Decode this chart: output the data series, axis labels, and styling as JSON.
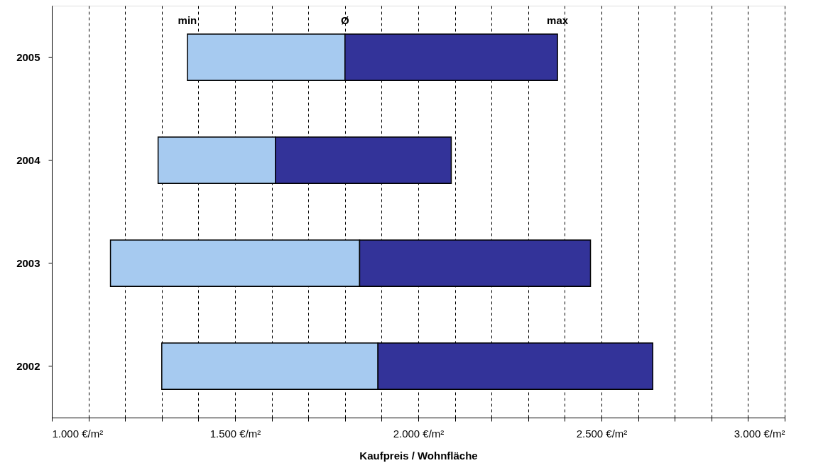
{
  "chart_data": {
    "type": "bar",
    "orientation": "horizontal",
    "categories": [
      "2005",
      "2004",
      "2003",
      "2002"
    ],
    "series": [
      {
        "color": "#a6caf0",
        "base": [
          1370,
          1290,
          1160,
          1300
        ],
        "values": [
          430,
          320,
          680,
          590
        ]
      },
      {
        "color": "#333399",
        "base": [
          1800,
          1610,
          1840,
          1890
        ],
        "values": [
          580,
          480,
          630,
          750
        ]
      }
    ],
    "xlabel": "Kaufpreis / Wohnfläche",
    "xlim": [
      1000,
      3000
    ],
    "xticks": [
      {
        "value": 1000,
        "label": "1.000 €/m²"
      },
      {
        "value": 1100,
        "label": null
      },
      {
        "value": 1200,
        "label": null
      },
      {
        "value": 1300,
        "label": null
      },
      {
        "value": 1400,
        "label": null
      },
      {
        "value": 1500,
        "label": "1.500 €/m²"
      },
      {
        "value": 1600,
        "label": null
      },
      {
        "value": 1700,
        "label": null
      },
      {
        "value": 1800,
        "label": null
      },
      {
        "value": 1900,
        "label": null
      },
      {
        "value": 2000,
        "label": "2.000 €/m²"
      },
      {
        "value": 2100,
        "label": null
      },
      {
        "value": 2200,
        "label": null
      },
      {
        "value": 2300,
        "label": null
      },
      {
        "value": 2400,
        "label": null
      },
      {
        "value": 2500,
        "label": "2.500 €/m²"
      },
      {
        "value": 2600,
        "label": null
      },
      {
        "value": 2700,
        "label": null
      },
      {
        "value": 2800,
        "label": null
      },
      {
        "value": 2900,
        "label": null
      },
      {
        "value": 3000,
        "label": "3.000 €/m²"
      }
    ],
    "grid": "x",
    "annotations": [
      "min",
      "Ø",
      "max"
    ]
  }
}
